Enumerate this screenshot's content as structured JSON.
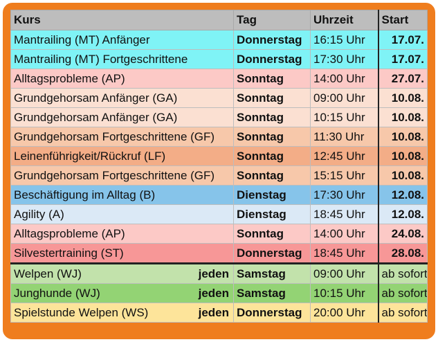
{
  "headers": {
    "kurs": "Kurs",
    "tag": "Tag",
    "uhrzeit": "Uhrzeit",
    "start": "Start"
  },
  "rows": [
    {
      "kurs": "Mantrailing (MT) Anfänger",
      "tag": "Donnerstag",
      "zeit": "16:15 Uhr",
      "start": "17.07.",
      "color": "#7ff3f6"
    },
    {
      "kurs": "Mantrailing (MT) Fortgeschrittene",
      "tag": "Donnerstag",
      "zeit": "17:30 Uhr",
      "start": "17.07.",
      "color": "#7ff3f6"
    },
    {
      "kurs": "Alltagsprobleme (AP)",
      "tag": "Sonntag",
      "zeit": "14:00 Uhr",
      "start": "27.07.",
      "color": "#fcc9c6"
    },
    {
      "kurs": "Grundgehorsam Anfänger (GA)",
      "tag": "Sonntag",
      "zeit": "09:00 Uhr",
      "start": "10.08.",
      "color": "#fbe0d2"
    },
    {
      "kurs": "Grundgehorsam Anfänger (GA)",
      "tag": "Sonntag",
      "zeit": "10:15 Uhr",
      "start": "10.08.",
      "color": "#fbe0d2"
    },
    {
      "kurs": "Grundgehorsam Fortgeschrittene (GF)",
      "tag": "Sonntag",
      "zeit": "11:30 Uhr",
      "start": "10.08.",
      "color": "#f7c8aa"
    },
    {
      "kurs": "Leinenführigkeit/Rückruf (LF)",
      "tag": "Sonntag",
      "zeit": "12:45 Uhr",
      "start": "10.08.",
      "color": "#f3ad87"
    },
    {
      "kurs": "Grundgehorsam Fortgeschrittene (GF)",
      "tag": "Sonntag",
      "zeit": "15:15 Uhr",
      "start": "10.08.",
      "color": "#f7c8aa"
    },
    {
      "kurs": "Beschäftigung im Alltag (B)",
      "tag": "Dienstag",
      "zeit": "17:30 Uhr",
      "start": "12.08.",
      "color": "#86c4ea"
    },
    {
      "kurs": "Agility (A)",
      "tag": "Dienstag",
      "zeit": "18:45 Uhr",
      "start": "12.08.",
      "color": "#dbe9f6"
    },
    {
      "kurs": "Alltagsprobleme (AP)",
      "tag": "Sonntag",
      "zeit": "14:00 Uhr",
      "start": "24.08.",
      "color": "#fcc9c6"
    },
    {
      "kurs": "Silvestertraining (ST)",
      "tag": "Donnerstag",
      "zeit": "18:45 Uhr",
      "start": "28.08.",
      "color": "#f79797"
    }
  ],
  "ongoing": [
    {
      "kurs": "Welpen (WJ)",
      "jeden": "jeden",
      "tag": "Samstag",
      "zeit": "09:00 Uhr",
      "start": "ab sofort",
      "color": "#c2e2ab"
    },
    {
      "kurs": "Junghunde (WJ)",
      "jeden": "jeden",
      "tag": "Samstag",
      "zeit": "10:15 Uhr",
      "start": "ab sofort",
      "color": "#93d374"
    },
    {
      "kurs": "Spielstunde Welpen (WS)",
      "jeden": "jeden",
      "tag": "Donnerstag",
      "zeit": "20:00 Uhr",
      "start": "ab sofort",
      "color": "#fde49a"
    }
  ]
}
